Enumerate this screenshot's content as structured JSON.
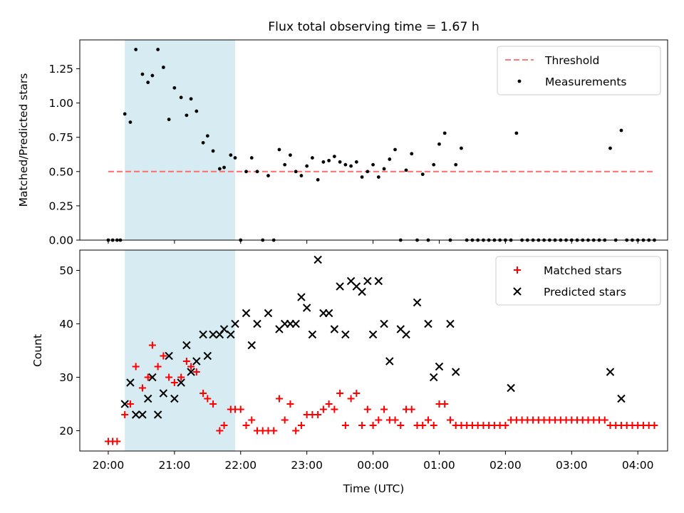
{
  "chart_data": [
    {
      "type": "scatter",
      "title": "Flux total observing time = 1.67 h",
      "xlabel": "",
      "ylabel": "Matched/Predicted stars",
      "ylim": [
        0,
        1.46
      ],
      "yticks": [
        "0.00",
        "0.25",
        "0.50",
        "0.75",
        "1.00",
        "1.25"
      ],
      "ytick_values": [
        0,
        0.25,
        0.5,
        0.75,
        1.0,
        1.25
      ],
      "legend_position": "top-right",
      "shaded_interval": {
        "x0": "20:15",
        "x1": "21:55",
        "color": "#add8e6"
      },
      "threshold": {
        "name": "Threshold",
        "y": 0.5,
        "x0": "20:00",
        "x1": "04:15",
        "color": "#ff6b6b"
      },
      "series": [
        {
          "name": "Measurements",
          "color": "#000000",
          "points": [
            [
              "20:00",
              0.0
            ],
            [
              "20:04",
              0.0
            ],
            [
              "20:08",
              0.0
            ],
            [
              "20:11",
              0.0
            ],
            [
              "20:15",
              0.92
            ],
            [
              "20:20",
              0.86
            ],
            [
              "20:25",
              1.39
            ],
            [
              "20:31",
              1.21
            ],
            [
              "20:36",
              1.15
            ],
            [
              "20:40",
              1.2
            ],
            [
              "20:45",
              1.39
            ],
            [
              "20:50",
              1.26
            ],
            [
              "20:55",
              0.88
            ],
            [
              "21:00",
              1.11
            ],
            [
              "21:06",
              1.04
            ],
            [
              "21:11",
              0.91
            ],
            [
              "21:15",
              1.03
            ],
            [
              "21:20",
              0.94
            ],
            [
              "21:26",
              0.71
            ],
            [
              "21:30",
              0.76
            ],
            [
              "21:35",
              0.65
            ],
            [
              "21:41",
              0.52
            ],
            [
              "21:45",
              0.53
            ],
            [
              "21:51",
              0.62
            ],
            [
              "21:55",
              0.6
            ],
            [
              "22:00",
              0.0
            ],
            [
              "22:05",
              0.5
            ],
            [
              "22:10",
              0.6
            ],
            [
              "22:15",
              0.5
            ],
            [
              "22:20",
              0.0
            ],
            [
              "22:25",
              0.47
            ],
            [
              "22:30",
              0.0
            ],
            [
              "22:35",
              0.66
            ],
            [
              "22:40",
              0.55
            ],
            [
              "22:45",
              0.62
            ],
            [
              "22:50",
              0.5
            ],
            [
              "22:55",
              0.47
            ],
            [
              "23:00",
              0.54
            ],
            [
              "23:05",
              0.6
            ],
            [
              "23:10",
              0.44
            ],
            [
              "23:15",
              0.57
            ],
            [
              "23:20",
              0.58
            ],
            [
              "23:25",
              0.61
            ],
            [
              "23:30",
              0.57
            ],
            [
              "23:35",
              0.55
            ],
            [
              "23:40",
              0.54
            ],
            [
              "23:45",
              0.57
            ],
            [
              "23:50",
              0.46
            ],
            [
              "23:55",
              0.5
            ],
            [
              "00:00",
              0.55
            ],
            [
              "00:05",
              0.46
            ],
            [
              "00:10",
              0.52
            ],
            [
              "00:15",
              0.59
            ],
            [
              "00:20",
              0.66
            ],
            [
              "00:25",
              0.0
            ],
            [
              "00:30",
              0.51
            ],
            [
              "00:35",
              0.63
            ],
            [
              "00:40",
              0.0
            ],
            [
              "00:45",
              0.48
            ],
            [
              "00:50",
              0.0
            ],
            [
              "00:55",
              0.55
            ],
            [
              "01:00",
              0.7
            ],
            [
              "01:05",
              0.78
            ],
            [
              "01:10",
              0.0
            ],
            [
              "01:15",
              0.55
            ],
            [
              "01:20",
              0.67
            ],
            [
              "01:25",
              0.0
            ],
            [
              "01:30",
              0.0
            ],
            [
              "01:35",
              0.0
            ],
            [
              "01:40",
              0.0
            ],
            [
              "01:45",
              0.0
            ],
            [
              "01:50",
              0.0
            ],
            [
              "01:55",
              0.0
            ],
            [
              "02:00",
              0.0
            ],
            [
              "02:05",
              0.0
            ],
            [
              "02:10",
              0.78
            ],
            [
              "02:15",
              0.0
            ],
            [
              "02:20",
              0.0
            ],
            [
              "02:25",
              0.0
            ],
            [
              "02:30",
              0.0
            ],
            [
              "02:35",
              0.0
            ],
            [
              "02:40",
              0.0
            ],
            [
              "02:45",
              0.0
            ],
            [
              "02:50",
              0.0
            ],
            [
              "02:55",
              0.0
            ],
            [
              "03:00",
              0.0
            ],
            [
              "03:05",
              0.0
            ],
            [
              "03:10",
              0.0
            ],
            [
              "03:15",
              0.0
            ],
            [
              "03:20",
              0.0
            ],
            [
              "03:25",
              0.0
            ],
            [
              "03:30",
              0.0
            ],
            [
              "03:35",
              0.67
            ],
            [
              "03:40",
              0.0
            ],
            [
              "03:45",
              0.8
            ],
            [
              "03:50",
              0.0
            ],
            [
              "03:55",
              0.0
            ],
            [
              "04:00",
              0.0
            ],
            [
              "04:05",
              0.0
            ],
            [
              "04:10",
              0.0
            ],
            [
              "04:15",
              0.0
            ]
          ]
        }
      ]
    },
    {
      "type": "scatter",
      "title": "",
      "xlabel": "Time (UTC)",
      "ylabel": "Count",
      "ylim": [
        16.2,
        53.8
      ],
      "yticks": [
        "20",
        "30",
        "40",
        "50"
      ],
      "ytick_values": [
        20,
        30,
        40,
        50
      ],
      "xticks": [
        "20:00",
        "21:00",
        "22:00",
        "23:00",
        "00:00",
        "01:00",
        "02:00",
        "03:00",
        "04:00"
      ],
      "legend_position": "top-right",
      "shaded_interval": {
        "x0": "20:15",
        "x1": "21:55",
        "color": "#add8e6"
      },
      "series": [
        {
          "name": "Matched stars",
          "color": "#ff0000",
          "points": [
            [
              "20:00",
              18
            ],
            [
              "20:04",
              18
            ],
            [
              "20:08",
              18
            ],
            [
              "20:15",
              23
            ],
            [
              "20:20",
              25
            ],
            [
              "20:25",
              32
            ],
            [
              "20:31",
              28
            ],
            [
              "20:36",
              30
            ],
            [
              "20:40",
              36
            ],
            [
              "20:45",
              32
            ],
            [
              "20:50",
              34
            ],
            [
              "20:55",
              30
            ],
            [
              "21:00",
              29
            ],
            [
              "21:06",
              30
            ],
            [
              "21:11",
              33
            ],
            [
              "21:15",
              32
            ],
            [
              "21:20",
              31
            ],
            [
              "21:26",
              27
            ],
            [
              "21:30",
              26
            ],
            [
              "21:35",
              25
            ],
            [
              "21:41",
              20
            ],
            [
              "21:45",
              21
            ],
            [
              "21:51",
              24
            ],
            [
              "21:55",
              24
            ],
            [
              "22:00",
              24
            ],
            [
              "22:05",
              21
            ],
            [
              "22:10",
              22
            ],
            [
              "22:15",
              20
            ],
            [
              "22:20",
              20
            ],
            [
              "22:25",
              20
            ],
            [
              "22:30",
              20
            ],
            [
              "22:35",
              26
            ],
            [
              "22:40",
              22
            ],
            [
              "22:45",
              25
            ],
            [
              "22:50",
              20
            ],
            [
              "22:55",
              21
            ],
            [
              "23:00",
              23
            ],
            [
              "23:05",
              23
            ],
            [
              "23:10",
              23
            ],
            [
              "23:15",
              24
            ],
            [
              "23:20",
              25
            ],
            [
              "23:25",
              24
            ],
            [
              "23:30",
              27
            ],
            [
              "23:35",
              21
            ],
            [
              "23:40",
              26
            ],
            [
              "23:45",
              27
            ],
            [
              "23:50",
              21
            ],
            [
              "23:55",
              24
            ],
            [
              "00:00",
              21
            ],
            [
              "00:05",
              22
            ],
            [
              "00:10",
              24
            ],
            [
              "00:15",
              22
            ],
            [
              "00:20",
              22
            ],
            [
              "00:25",
              21
            ],
            [
              "00:30",
              24
            ],
            [
              "00:35",
              24
            ],
            [
              "00:40",
              21
            ],
            [
              "00:45",
              21
            ],
            [
              "00:50",
              22
            ],
            [
              "00:55",
              21
            ],
            [
              "01:00",
              25
            ],
            [
              "01:05",
              25
            ],
            [
              "01:10",
              22
            ],
            [
              "01:15",
              21
            ],
            [
              "01:20",
              21
            ],
            [
              "01:25",
              21
            ],
            [
              "01:30",
              21
            ],
            [
              "01:35",
              21
            ],
            [
              "01:40",
              21
            ],
            [
              "01:45",
              21
            ],
            [
              "01:50",
              21
            ],
            [
              "01:55",
              21
            ],
            [
              "02:00",
              21
            ],
            [
              "02:05",
              22
            ],
            [
              "02:10",
              22
            ],
            [
              "02:15",
              22
            ],
            [
              "02:20",
              22
            ],
            [
              "02:25",
              22
            ],
            [
              "02:30",
              22
            ],
            [
              "02:35",
              22
            ],
            [
              "02:40",
              22
            ],
            [
              "02:45",
              22
            ],
            [
              "02:50",
              22
            ],
            [
              "02:55",
              22
            ],
            [
              "03:00",
              22
            ],
            [
              "03:05",
              22
            ],
            [
              "03:10",
              22
            ],
            [
              "03:15",
              22
            ],
            [
              "03:20",
              22
            ],
            [
              "03:25",
              22
            ],
            [
              "03:30",
              22
            ],
            [
              "03:35",
              21
            ],
            [
              "03:40",
              21
            ],
            [
              "03:45",
              21
            ],
            [
              "03:50",
              21
            ],
            [
              "03:55",
              21
            ],
            [
              "04:00",
              21
            ],
            [
              "04:05",
              21
            ],
            [
              "04:10",
              21
            ],
            [
              "04:15",
              21
            ]
          ]
        },
        {
          "name": "Predicted stars",
          "color": "#000000",
          "points": [
            [
              "20:15",
              25
            ],
            [
              "20:20",
              29
            ],
            [
              "20:25",
              23
            ],
            [
              "20:31",
              23
            ],
            [
              "20:36",
              26
            ],
            [
              "20:40",
              30
            ],
            [
              "20:45",
              23
            ],
            [
              "20:50",
              27
            ],
            [
              "20:55",
              34
            ],
            [
              "21:00",
              26
            ],
            [
              "21:06",
              29
            ],
            [
              "21:11",
              36
            ],
            [
              "21:15",
              31
            ],
            [
              "21:20",
              33
            ],
            [
              "21:26",
              38
            ],
            [
              "21:30",
              34
            ],
            [
              "21:35",
              38
            ],
            [
              "21:41",
              38
            ],
            [
              "21:45",
              39
            ],
            [
              "21:51",
              38
            ],
            [
              "21:55",
              40
            ],
            [
              "22:05",
              42
            ],
            [
              "22:10",
              36
            ],
            [
              "22:15",
              40
            ],
            [
              "22:25",
              42
            ],
            [
              "22:35",
              39
            ],
            [
              "22:40",
              40
            ],
            [
              "22:45",
              40
            ],
            [
              "22:50",
              40
            ],
            [
              "22:55",
              45
            ],
            [
              "23:00",
              43
            ],
            [
              "23:05",
              38
            ],
            [
              "23:10",
              52
            ],
            [
              "23:15",
              42
            ],
            [
              "23:20",
              42
            ],
            [
              "23:25",
              39
            ],
            [
              "23:30",
              47
            ],
            [
              "23:35",
              38
            ],
            [
              "23:40",
              48
            ],
            [
              "23:45",
              47
            ],
            [
              "23:50",
              46
            ],
            [
              "23:55",
              48
            ],
            [
              "00:00",
              38
            ],
            [
              "00:05",
              48
            ],
            [
              "00:10",
              40
            ],
            [
              "00:15",
              33
            ],
            [
              "00:25",
              39
            ],
            [
              "00:30",
              38
            ],
            [
              "00:40",
              44
            ],
            [
              "00:50",
              40
            ],
            [
              "00:55",
              30
            ],
            [
              "01:00",
              32
            ],
            [
              "01:10",
              40
            ],
            [
              "01:15",
              31
            ],
            [
              "02:05",
              28
            ],
            [
              "03:35",
              31
            ],
            [
              "03:45",
              26
            ]
          ]
        }
      ]
    }
  ]
}
